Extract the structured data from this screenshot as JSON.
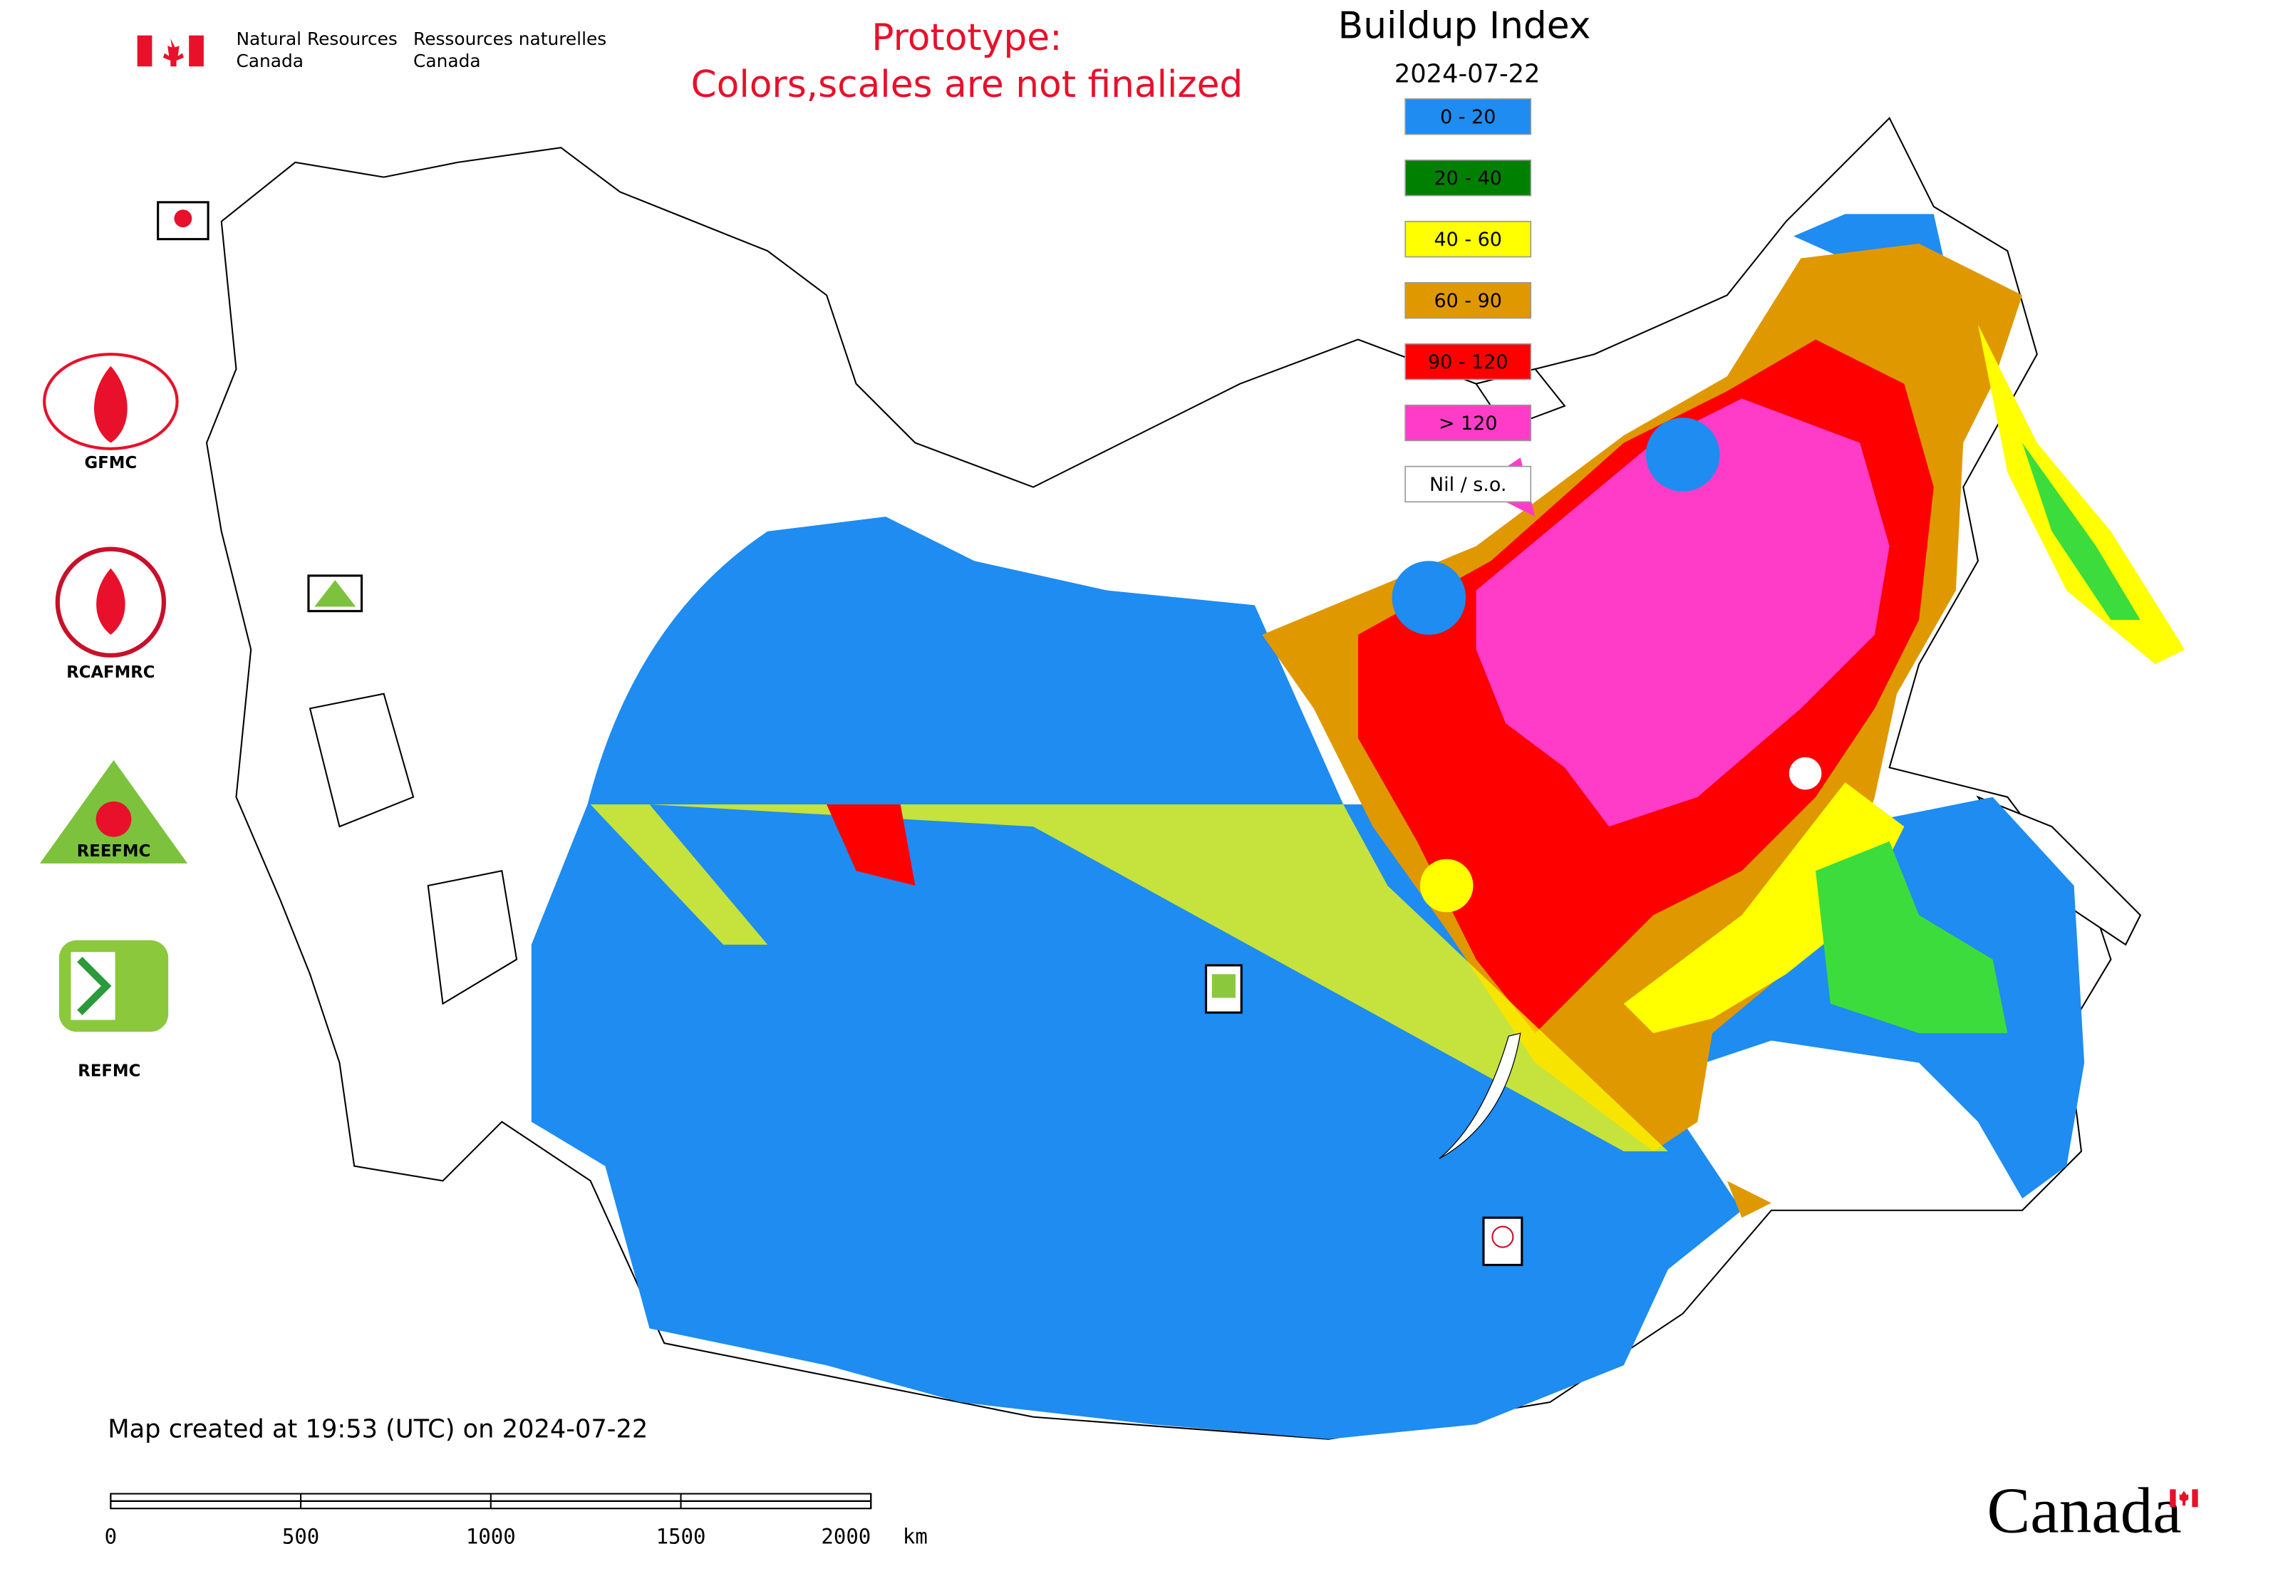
{
  "header": {
    "dept_en_1": "Natural Resources",
    "dept_en_2": "Canada",
    "dept_fr_1": "Ressources naturelles",
    "dept_fr_2": "Canada"
  },
  "notice": {
    "line1": "Prototype:",
    "line2": "Colors,scales are not finalized"
  },
  "legend": {
    "title": "Buildup Index",
    "date": "2024-07-22",
    "items": [
      {
        "label": "0 - 20",
        "color": "#1e8cf0"
      },
      {
        "label": "20 - 40",
        "color": "#008000"
      },
      {
        "label": "40 - 60",
        "color": "#ffff00"
      },
      {
        "label": "60 - 90",
        "color": "#e09800"
      },
      {
        "label": "90 - 120",
        "color": "#ff0000"
      },
      {
        "label": "> 120",
        "color": "#ff3cc8"
      },
      {
        "label": "Nil / s.o.",
        "color": "#ffffff"
      }
    ]
  },
  "logos": [
    "GFMC",
    "RCAFMRC",
    "REEFMC",
    "REFMC"
  ],
  "footer": {
    "created": "Map created at 19:53 (UTC) on 2024-07-22",
    "scale_ticks": [
      0,
      500,
      1000,
      1500,
      2000
    ],
    "scale_unit": "km",
    "wordmark": "Canada"
  }
}
